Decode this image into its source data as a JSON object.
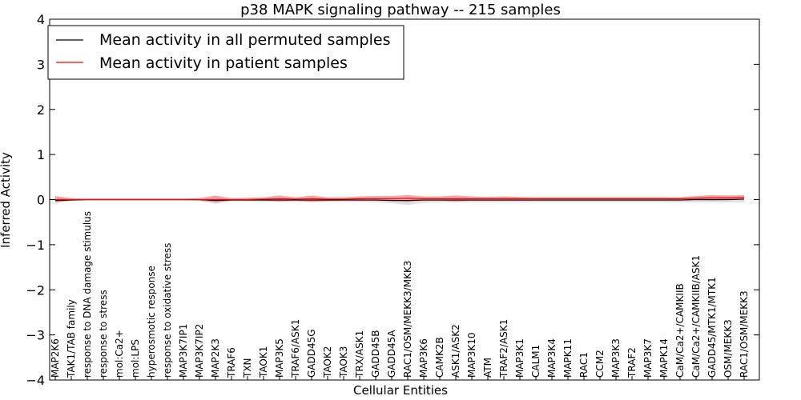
{
  "chart_data": {
    "type": "line",
    "title": "p38 MAPK signaling pathway -- 215 samples",
    "xlabel": "Cellular Entities",
    "ylabel": "Inferred Activity",
    "ylim": [
      -4,
      4
    ],
    "yticks": [
      -4,
      -3,
      -2,
      -1,
      0,
      1,
      2,
      3,
      4
    ],
    "ytick_labels": [
      "−4",
      "−3",
      "−2",
      "−1",
      "0",
      "1",
      "2",
      "3",
      "4"
    ],
    "grid": false,
    "legend_position": "top-left",
    "categories": [
      "MAP2K6",
      "TAK1/TAB family",
      "response to DNA damage stimulus",
      "response to stress",
      "mol:Ca2+",
      "mol:LPS",
      "hyperosmotic response",
      "response to oxidative stress",
      "MAP3K7IP1",
      "MAP3K7IP2",
      "MAP2K3",
      "TRAF6",
      "TXN",
      "TAOK1",
      "MAP3K5",
      "TRAF6/ASK1",
      "GADD45G",
      "TAOK2",
      "TAOK3",
      "TRX/ASK1",
      "GADD45B",
      "GADD45A",
      "RAC1/OSM/MEKK3/MKK3",
      "MAP3K6",
      "CAMK2B",
      "ASK1/ASK2",
      "MAP3K10",
      "ATM",
      "TRAF2/ASK1",
      "MAP3K1",
      "CALM1",
      "MAP3K4",
      "MAPK11",
      "RAC1",
      "CCM2",
      "MAP3K3",
      "TRAF2",
      "MAP3K7",
      "MAPK14",
      "CaM/Ca2+/CAMKIIB",
      "CaM/Ca2+/CAMKIIB/ASK1",
      "GADD45/MTK1/MTK1",
      "OSM/MEKK3",
      "RAC1/OSM/MEKK3"
    ],
    "series": [
      {
        "name": "Mean activity in all permuted samples",
        "color": "#000000",
        "values": [
          -0.02,
          -0.01,
          0,
          0,
          0,
          0,
          0,
          0,
          0,
          0,
          -0.02,
          -0.01,
          -0.01,
          -0.01,
          -0.01,
          -0.01,
          -0.01,
          -0.01,
          -0.01,
          -0.01,
          -0.01,
          -0.02,
          -0.02,
          -0.01,
          -0.01,
          -0.01,
          -0.01,
          -0.01,
          -0.01,
          -0.01,
          -0.01,
          -0.01,
          -0.01,
          -0.01,
          -0.01,
          -0.01,
          -0.01,
          -0.01,
          -0.01,
          -0.01,
          0,
          0,
          0,
          0.01
        ],
        "band_low": [
          -0.05,
          -0.03,
          -0.02,
          -0.02,
          -0.02,
          -0.02,
          -0.02,
          -0.02,
          -0.02,
          -0.03,
          -0.09,
          -0.04,
          -0.04,
          -0.05,
          -0.05,
          -0.05,
          -0.05,
          -0.05,
          -0.05,
          -0.05,
          -0.06,
          -0.08,
          -0.12,
          -0.07,
          -0.06,
          -0.06,
          -0.06,
          -0.06,
          -0.06,
          -0.06,
          -0.06,
          -0.06,
          -0.06,
          -0.06,
          -0.06,
          -0.06,
          -0.06,
          -0.06,
          -0.06,
          -0.06,
          -0.06,
          -0.06,
          -0.06,
          -0.06
        ],
        "band_high": [
          0.02,
          0.02,
          0.02,
          0.02,
          0.02,
          0.02,
          0.02,
          0.02,
          0.02,
          0.02,
          0.03,
          0.02,
          0.02,
          0.02,
          0.02,
          0.02,
          0.02,
          0.02,
          0.02,
          0.02,
          0.02,
          0.03,
          0.03,
          0.02,
          0.02,
          0.02,
          0.02,
          0.02,
          0.02,
          0.02,
          0.02,
          0.02,
          0.02,
          0.02,
          0.02,
          0.02,
          0.02,
          0.02,
          0.02,
          0.02,
          0.02,
          0.02,
          0.03,
          0.03
        ],
        "band_color": "#c7c7d6"
      },
      {
        "name": "Mean activity in patient samples",
        "color": "#ff0000",
        "values": [
          0,
          0,
          0,
          0,
          0,
          0,
          0,
          0,
          0,
          0,
          0,
          0,
          0,
          0.01,
          0.02,
          0.01,
          0.02,
          0.01,
          0.01,
          0.02,
          0.02,
          0.02,
          0.03,
          0.02,
          0.02,
          0.02,
          0.02,
          0.02,
          0.02,
          0.02,
          0.02,
          0.02,
          0.02,
          0.02,
          0.02,
          0.02,
          0.02,
          0.02,
          0.02,
          0.02,
          0.03,
          0.04,
          0.04,
          0.05
        ],
        "band_low": [
          -0.07,
          -0.02,
          -0.01,
          -0.01,
          -0.01,
          -0.01,
          -0.01,
          -0.01,
          -0.01,
          -0.02,
          -0.06,
          -0.02,
          -0.02,
          -0.02,
          -0.04,
          -0.02,
          -0.05,
          -0.03,
          -0.02,
          -0.02,
          -0.02,
          -0.02,
          -0.05,
          -0.02,
          -0.02,
          -0.04,
          -0.02,
          -0.02,
          -0.02,
          -0.02,
          -0.02,
          -0.01,
          -0.01,
          -0.01,
          -0.01,
          -0.01,
          -0.01,
          -0.01,
          -0.01,
          -0.01,
          -0.01,
          -0.02,
          -0.01,
          0
        ],
        "band_high": [
          0.08,
          0.03,
          0.02,
          0.02,
          0.02,
          0.02,
          0.02,
          0.02,
          0.02,
          0.03,
          0.09,
          0.03,
          0.04,
          0.05,
          0.09,
          0.05,
          0.09,
          0.05,
          0.05,
          0.07,
          0.08,
          0.08,
          0.1,
          0.07,
          0.07,
          0.09,
          0.07,
          0.06,
          0.07,
          0.06,
          0.05,
          0.05,
          0.05,
          0.05,
          0.05,
          0.05,
          0.05,
          0.05,
          0.05,
          0.05,
          0.08,
          0.1,
          0.09,
          0.1
        ],
        "band_color": "#f08080"
      }
    ]
  }
}
